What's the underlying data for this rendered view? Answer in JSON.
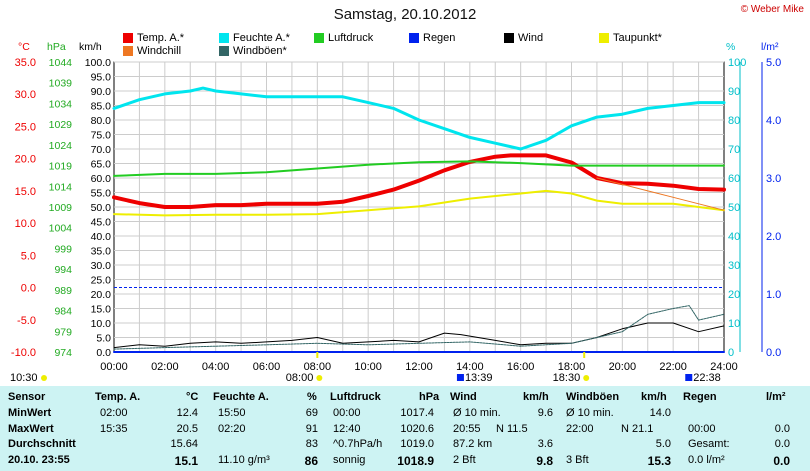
{
  "header": {
    "title": "Samstag, 20.10.2012",
    "credit": "© Weber Mike"
  },
  "legend": [
    {
      "label": "Temp. A.*",
      "color": "#ee0000"
    },
    {
      "label": "Feuchte A.*",
      "color": "#00e5ee"
    },
    {
      "label": "Luftdruck",
      "color": "#22cc22"
    },
    {
      "label": "Regen",
      "color": "#0022ee"
    },
    {
      "label": "Wind",
      "color": "#000000"
    },
    {
      "label": "Taupunkt*",
      "color": "#eeee00"
    },
    {
      "label": "Windchill",
      "color": "#ee7722"
    },
    {
      "label": "Windböen*",
      "color": "#336666"
    }
  ],
  "axes": {
    "temp_unit": "°C",
    "pressure_unit": "hPa",
    "wind_unit": "km/h",
    "humidity_unit": "%",
    "rain_unit": "l/m²",
    "temp_ticks": [
      "35.0",
      "30.0",
      "25.0",
      "20.0",
      "15.0",
      "10.0",
      "5.0",
      "0.0",
      "-5.0",
      "-10.0"
    ],
    "pressure_ticks": [
      "1044",
      "1039",
      "1034",
      "1029",
      "1024",
      "1019",
      "1014",
      "1009",
      "1004",
      "999",
      "994",
      "989",
      "984",
      "979",
      "974"
    ],
    "wind_ticks": [
      "100.0",
      "95.0",
      "90.0",
      "85.0",
      "80.0",
      "75.0",
      "70.0",
      "65.0",
      "60.0",
      "55.0",
      "50.0",
      "45.0",
      "40.0",
      "35.0",
      "30.0",
      "25.0",
      "20.0",
      "15.0",
      "10.0",
      "5.0",
      "0.0"
    ],
    "humidity_ticks": [
      "100",
      "90",
      "80",
      "70",
      "60",
      "50",
      "40",
      "30",
      "20",
      "10",
      "0"
    ],
    "rain_ticks": [
      "5.0",
      "4.0",
      "3.0",
      "2.0",
      "1.0",
      "0.0"
    ],
    "time_ticks": [
      "00:00",
      "02:00",
      "04:00",
      "06:00",
      "08:00",
      "10:00",
      "12:00",
      "14:00",
      "16:00",
      "18:00",
      "20:00",
      "22:00",
      "24:00"
    ]
  },
  "markers": {
    "sunrise": "08:00",
    "sunset": "18:30",
    "daylength": "10:30",
    "max_wind_time": "13:39",
    "max_gust_time": "22:38"
  },
  "chart_data": {
    "type": "line",
    "x_unit": "hour",
    "xlim": [
      0,
      24
    ],
    "series": [
      {
        "name": "Temp. A.*",
        "unit": "°C",
        "color": "#ee0000",
        "x": [
          0,
          1,
          2,
          3,
          4,
          5,
          6,
          7,
          8,
          9,
          10,
          11,
          12,
          13,
          14,
          15,
          15.6,
          16,
          17,
          18,
          19,
          20,
          21,
          22,
          23,
          24
        ],
        "values": [
          14.0,
          13.1,
          12.5,
          12.5,
          12.8,
          12.8,
          13.0,
          13.0,
          13.0,
          13.3,
          14.2,
          15.2,
          16.6,
          18.2,
          19.5,
          20.3,
          20.5,
          20.5,
          20.5,
          19.4,
          17.0,
          16.2,
          16.1,
          15.8,
          15.3,
          15.2
        ]
      },
      {
        "name": "Feuchte A.*",
        "unit": "%",
        "color": "#00e5ee",
        "x": [
          0,
          1,
          2,
          3,
          3.5,
          4,
          5,
          6,
          7,
          8,
          9,
          10,
          11,
          12,
          13,
          14,
          15,
          16,
          17,
          18,
          19,
          20,
          21,
          22,
          23,
          24
        ],
        "values": [
          84,
          87,
          89,
          90,
          91,
          90,
          89,
          88,
          88,
          88,
          88,
          86,
          84,
          80,
          77,
          74,
          72,
          70,
          73,
          78,
          81,
          82,
          84,
          85,
          86,
          86
        ]
      },
      {
        "name": "Luftdruck",
        "unit": "hPa",
        "color": "#22cc22",
        "x": [
          0,
          2,
          4,
          6,
          8,
          10,
          12,
          14,
          16,
          18,
          20,
          22,
          24
        ],
        "values": [
          1016.5,
          1017.0,
          1017.0,
          1017.4,
          1018.3,
          1019.2,
          1019.8,
          1020.0,
          1019.6,
          1019.0,
          1019.0,
          1019.0,
          1019.0
        ]
      },
      {
        "name": "Taupunkt*",
        "unit": "°C",
        "color": "#eeee00",
        "x": [
          0,
          2,
          4,
          6,
          8,
          10,
          12,
          14,
          16,
          17,
          18,
          19,
          20,
          22,
          24
        ],
        "values": [
          11.4,
          11.2,
          11.3,
          11.3,
          11.4,
          12.0,
          12.6,
          13.8,
          14.6,
          15.0,
          14.6,
          13.5,
          13.0,
          13.0,
          12.0
        ]
      },
      {
        "name": "Windchill",
        "unit": "°C",
        "color": "#ee7722",
        "x": [
          19,
          20,
          21,
          22,
          23,
          24
        ],
        "values": [
          17.0,
          16.0,
          15.0,
          14.0,
          13.0,
          12.0
        ]
      },
      {
        "name": "Wind",
        "unit": "km/h",
        "color": "#000000",
        "x": [
          0,
          1,
          2,
          3,
          4,
          5,
          6,
          7,
          8,
          9,
          10,
          11,
          12,
          13,
          13.65,
          14,
          15,
          16,
          17,
          18,
          19,
          20,
          21,
          22,
          23,
          24
        ],
        "values": [
          1.5,
          2.5,
          2,
          3,
          3.5,
          3,
          3.5,
          4,
          5,
          3,
          3.5,
          4,
          3.5,
          6.5,
          6,
          5.5,
          4,
          2.5,
          3,
          3,
          5,
          8,
          10,
          10,
          7,
          9
        ]
      },
      {
        "name": "Windböen*",
        "unit": "km/h",
        "color": "#336666",
        "x": [
          0,
          2,
          4,
          6,
          8,
          10,
          12,
          14,
          16,
          18,
          20,
          21,
          22,
          22.63,
          23,
          24
        ],
        "values": [
          1,
          1.5,
          2,
          2.5,
          3,
          2.5,
          3,
          3.5,
          2,
          3,
          7,
          13,
          15,
          16,
          11,
          13
        ]
      },
      {
        "name": "Regen",
        "unit": "l/m²",
        "color": "#0022ee",
        "x": [
          0,
          24
        ],
        "values": [
          0,
          0
        ]
      }
    ],
    "reference_lines": [
      {
        "axis": "temp",
        "value": 0.0,
        "color": "#0022ee",
        "style": "dashed"
      }
    ],
    "ylim_temp": [
      -10,
      35
    ],
    "ylim_pressure": [
      974,
      1044
    ],
    "ylim_wind": [
      0,
      100
    ],
    "ylim_humidity": [
      0,
      100
    ],
    "ylim_rain": [
      0,
      5
    ],
    "grid": true
  },
  "table": {
    "headers": [
      "Sensor",
      "Temp. A.",
      "°C",
      "Feuchte A.",
      "%",
      "Luftdruck",
      "hPa",
      "Wind",
      "km/h",
      "Windböen",
      "km/h",
      "Regen",
      "l/m²"
    ],
    "rows": [
      {
        "label": "MinWert",
        "temp_time": "02:00",
        "temp_val": "12.4",
        "hum_time": "15:50",
        "hum_val": "69",
        "press_time": "00:00",
        "press_val": "1017.4",
        "wind_time": "Ø 10 min.",
        "wind_val": "9.6",
        "gust_time": "Ø 10 min.",
        "gust_val": "14.0",
        "rain_time": "",
        "rain_val": ""
      },
      {
        "label": "MaxWert",
        "temp_time": "15:35",
        "temp_val": "20.5",
        "hum_time": "02:20",
        "hum_val": "91",
        "press_time": "12:40",
        "press_val": "1020.6",
        "wind_time": "20:55",
        "wind_mid": "N 11.5",
        "wind_val": "",
        "gust_time": "22:00",
        "gust_mid": "N 21.1",
        "gust_val": "",
        "rain_time": "00:00",
        "rain_val": "0.0"
      },
      {
        "label": "Durchschnitt",
        "temp_time": "",
        "temp_val": "15.64",
        "hum_time": "",
        "hum_val": "83",
        "press_time": "^0.7hPa/h",
        "press_val": "1019.0",
        "wind_time": "87.2 km",
        "wind_val": "3.6",
        "gust_time": "",
        "gust_val": "5.0",
        "rain_time": "Gesamt:",
        "rain_val": "0.0"
      },
      {
        "label": "20.10. 23:55",
        "temp_time": "",
        "temp_val": "15.1",
        "hum_time": "11.10 g/m³",
        "hum_val": "86",
        "press_time": "sonnig",
        "press_val": "1018.9",
        "wind_time": "2 Bft",
        "wind_val": "9.8",
        "gust_time": "3 Bft",
        "gust_val": "15.3",
        "rain_time": "0.0 l/m²",
        "rain_val": "0.0"
      }
    ]
  }
}
